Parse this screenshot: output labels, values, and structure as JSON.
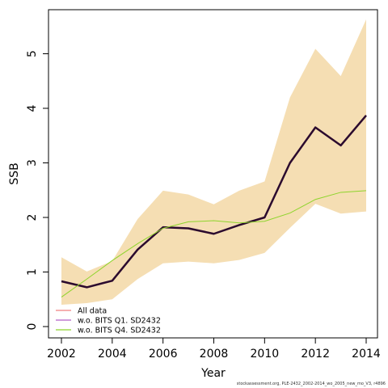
{
  "chart_data": {
    "type": "line",
    "xlabel": "Year",
    "ylabel": "SSB",
    "x": [
      2002,
      2003,
      2004,
      2005,
      2006,
      2007,
      2008,
      2009,
      2010,
      2011,
      2012,
      2013,
      2014
    ],
    "xlim": [
      2002,
      2014
    ],
    "ylim": [
      0,
      5.6
    ],
    "x_ticks": [
      2002,
      2004,
      2006,
      2008,
      2010,
      2012,
      2014
    ],
    "y_ticks": [
      0,
      1,
      2,
      3,
      4,
      5
    ],
    "confidence_band": {
      "lower": [
        0.4,
        0.43,
        0.5,
        0.87,
        1.16,
        1.19,
        1.16,
        1.22,
        1.35,
        1.81,
        2.25,
        2.07,
        2.11
      ],
      "upper": [
        1.27,
        1.01,
        1.2,
        1.97,
        2.49,
        2.42,
        2.24,
        2.49,
        2.66,
        4.2,
        5.09,
        4.59,
        5.63
      ],
      "color": "#f5deb3"
    },
    "series": [
      {
        "name": "All data",
        "color": "#f08080",
        "values": [
          0.83,
          0.72,
          0.84,
          1.41,
          1.82,
          1.8,
          1.7,
          1.86,
          2.0,
          3.0,
          3.65,
          3.32,
          3.87
        ]
      },
      {
        "name": "w.o. BITS Q1. SD2432",
        "color": "#b45fc8",
        "values": [
          0.83,
          0.72,
          0.84,
          1.41,
          1.82,
          1.8,
          1.7,
          1.86,
          2.0,
          3.0,
          3.65,
          3.32,
          3.87
        ]
      },
      {
        "name": "w.o. BITS Q4. SD2432",
        "color": "#8ed42c",
        "values": [
          0.54,
          0.87,
          1.21,
          1.52,
          1.8,
          1.92,
          1.94,
          1.9,
          1.93,
          2.08,
          2.33,
          2.46,
          2.49
        ]
      }
    ],
    "main_line_color": "#2b0a2e",
    "legend_position": "bottom-left"
  },
  "footnote": "stockassessment.org, PLE-2432_2002-2014_wo_2005_new_mo_V3, r4896"
}
